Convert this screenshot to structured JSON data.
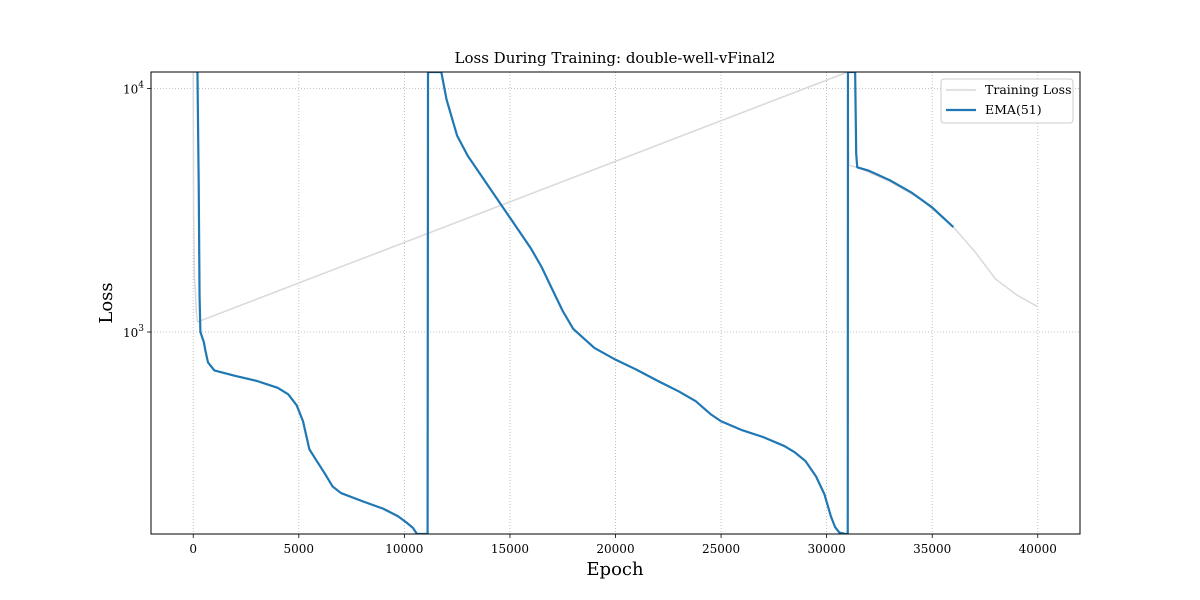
{
  "chart_data": {
    "type": "line",
    "title": "Loss During Training: double-well-vFinal2",
    "xlabel": "Epoch",
    "ylabel": "Loss",
    "xlim": [
      -2000,
      42000
    ],
    "ylim": [
      148,
      11700
    ],
    "yscale": "log",
    "xticks": [
      0,
      5000,
      10000,
      15000,
      20000,
      25000,
      30000,
      35000,
      40000
    ],
    "xtick_labels": [
      "0",
      "5000",
      "10000",
      "15000",
      "20000",
      "25000",
      "30000",
      "35000",
      "40000"
    ],
    "yticks": [
      1000,
      10000
    ],
    "ytick_labels": [
      {
        "base": "10",
        "exp": "3"
      },
      {
        "base": "10",
        "exp": "4"
      }
    ],
    "grid": true,
    "legend_position": "top-right",
    "series": [
      {
        "name": "Training Loss",
        "color": "#d9d9d9",
        "points": [
          [
            0,
            11700
          ],
          [
            20,
            3000
          ],
          [
            60,
            1650
          ],
          [
            100,
            1500
          ],
          [
            150,
            1200
          ],
          [
            200,
            1100
          ],
          [
            31000,
            11700
          ],
          [
            31050,
            4850
          ],
          [
            31600,
            4700
          ],
          [
            33000,
            4150
          ],
          [
            34500,
            3500
          ],
          [
            36000,
            2700
          ],
          [
            37000,
            2150
          ],
          [
            38000,
            1650
          ],
          [
            39000,
            1420
          ],
          [
            40000,
            1270
          ]
        ]
      },
      {
        "name": "EMA(51)",
        "color": "#1f77b4",
        "points": [
          [
            200,
            11700
          ],
          [
            260,
            4000
          ],
          [
            300,
            1400
          ],
          [
            340,
            1000
          ],
          [
            500,
            910
          ],
          [
            600,
            820
          ],
          [
            700,
            750
          ],
          [
            1000,
            695
          ],
          [
            2000,
            660
          ],
          [
            3000,
            630
          ],
          [
            4000,
            590
          ],
          [
            4500,
            555
          ],
          [
            4900,
            500
          ],
          [
            5200,
            430
          ],
          [
            5500,
            330
          ],
          [
            5800,
            300
          ],
          [
            6200,
            265
          ],
          [
            6600,
            232
          ],
          [
            7000,
            218
          ],
          [
            8000,
            202
          ],
          [
            9000,
            188
          ],
          [
            9700,
            175
          ],
          [
            10100,
            165
          ],
          [
            10400,
            157
          ],
          [
            10600,
            148
          ],
          [
            11100,
            148
          ],
          [
            11120,
            11700
          ],
          [
            11750,
            11700
          ],
          [
            12000,
            9000
          ],
          [
            12500,
            6400
          ],
          [
            13000,
            5300
          ],
          [
            14000,
            3950
          ],
          [
            15000,
            2950
          ],
          [
            16000,
            2200
          ],
          [
            16500,
            1850
          ],
          [
            17000,
            1500
          ],
          [
            17500,
            1220
          ],
          [
            18000,
            1030
          ],
          [
            19000,
            860
          ],
          [
            20000,
            770
          ],
          [
            21000,
            700
          ],
          [
            22000,
            630
          ],
          [
            23000,
            570
          ],
          [
            23800,
            520
          ],
          [
            24500,
            460
          ],
          [
            25000,
            430
          ],
          [
            26000,
            395
          ],
          [
            27000,
            370
          ],
          [
            28000,
            340
          ],
          [
            28500,
            320
          ],
          [
            29000,
            295
          ],
          [
            29500,
            255
          ],
          [
            29900,
            215
          ],
          [
            30200,
            175
          ],
          [
            30400,
            158
          ],
          [
            30600,
            150
          ],
          [
            30900,
            148
          ],
          [
            31000,
            148
          ],
          [
            31010,
            11700
          ],
          [
            31350,
            11700
          ],
          [
            31400,
            5400
          ],
          [
            31450,
            4750
          ],
          [
            32000,
            4600
          ],
          [
            33000,
            4200
          ],
          [
            34000,
            3750
          ],
          [
            35000,
            3250
          ],
          [
            36000,
            2700
          ]
        ]
      }
    ]
  }
}
